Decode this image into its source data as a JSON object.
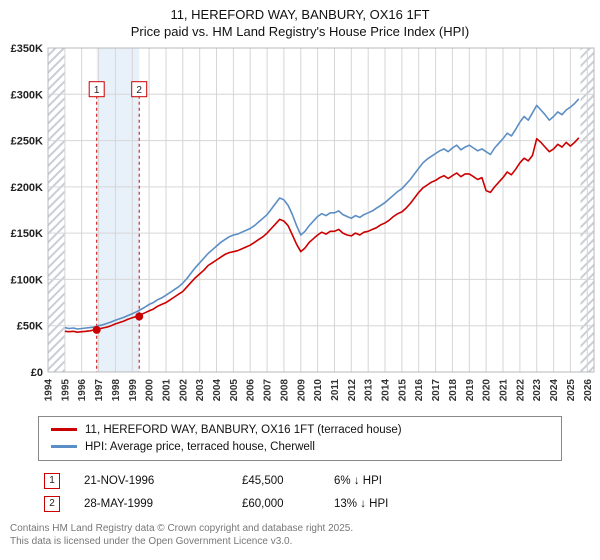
{
  "title": "11, HEREFORD WAY, BANBURY, OX16 1FT",
  "subtitle": "Price paid vs. HM Land Registry's House Price Index (HPI)",
  "legend": [
    {
      "label": "11, HEREFORD WAY, BANBURY, OX16 1FT (terraced house)",
      "color": "#cc0000"
    },
    {
      "label": "HPI: Average price, terraced house, Cherwell",
      "color": "#5b8ec4"
    }
  ],
  "transactions": [
    {
      "marker": "1",
      "date": "21-NOV-1996",
      "price": "£45,500",
      "hpi_diff": "6% ↓ HPI"
    },
    {
      "marker": "2",
      "date": "28-MAY-1999",
      "price": "£60,000",
      "hpi_diff": "13% ↓ HPI"
    }
  ],
  "footer": {
    "line1": "Contains HM Land Registry data © Crown copyright and database right 2025.",
    "line2": "This data is licensed under the Open Government Licence v3.0."
  },
  "chart_data": {
    "type": "line",
    "title": "11, HEREFORD WAY, BANBURY, OX16 1FT — Price paid vs. HPI",
    "y_unit": "GBP thousands",
    "x_start": 1995.0,
    "x_step": 0.25,
    "x_axis": {
      "min": 1994,
      "max": 2026.4,
      "ticks": [
        1994,
        1995,
        1996,
        1997,
        1998,
        1999,
        2000,
        2001,
        2002,
        2003,
        2004,
        2005,
        2006,
        2007,
        2008,
        2009,
        2010,
        2011,
        2012,
        2013,
        2014,
        2015,
        2016,
        2017,
        2018,
        2019,
        2020,
        2021,
        2022,
        2023,
        2024,
        2025,
        2026
      ]
    },
    "y_axis": {
      "min_k": 0,
      "max_k": 350,
      "tick_step_k": 50,
      "tick_labels": [
        "£0",
        "£50K",
        "£100K",
        "£150K",
        "£200K",
        "£250K",
        "£300K",
        "£350K"
      ]
    },
    "grid": true,
    "legend_position": "bottom",
    "series": [
      {
        "name": "HPI: Average price, terraced house, Cherwell",
        "color": "#5b8ec4",
        "values_k": [
          48,
          47,
          47.5,
          46.5,
          47,
          47.5,
          48,
          48.5,
          50,
          51,
          52.5,
          54,
          56,
          57.5,
          59,
          61,
          63,
          65,
          67.5,
          70,
          73,
          75,
          78,
          80,
          83,
          86,
          89,
          92,
          96,
          101,
          107,
          113,
          118,
          123,
          128,
          132,
          136,
          140,
          143,
          146,
          148,
          149,
          151,
          153,
          155,
          158,
          162,
          166,
          170,
          176,
          182,
          188,
          186,
          180,
          170,
          158,
          148,
          152,
          158,
          163,
          168,
          171,
          169,
          172,
          172,
          174,
          170,
          168,
          166,
          169,
          167,
          170,
          172,
          174,
          177,
          180,
          183,
          187,
          191,
          195,
          198,
          203,
          208,
          214,
          220,
          226,
          230,
          233,
          236,
          239,
          241,
          238,
          242,
          245,
          240,
          243,
          245,
          242,
          239,
          241,
          238,
          235,
          242,
          247,
          252,
          258,
          255,
          262,
          270,
          276,
          272,
          280,
          288,
          283,
          278,
          272,
          276,
          281,
          278,
          283,
          286,
          290,
          295
        ]
      },
      {
        "name": "11, HEREFORD WAY, BANBURY, OX16 1FT (terraced house)",
        "color": "#cc0000",
        "values_k": [
          44,
          43.5,
          44,
          43,
          43.5,
          44,
          44.5,
          45.5,
          46.5,
          47.5,
          48.5,
          50,
          52,
          53.5,
          55,
          57,
          58.5,
          60,
          62,
          64,
          66,
          68,
          71,
          73,
          75,
          78,
          81,
          84,
          87,
          92,
          97,
          102,
          106,
          110,
          115,
          118,
          121,
          124,
          127,
          129,
          130,
          131,
          133,
          135,
          137,
          140,
          143,
          146,
          150,
          155,
          160,
          165,
          163,
          158,
          148,
          138,
          130,
          134,
          140,
          144,
          148,
          151,
          149,
          152,
          152,
          154,
          150,
          148,
          147,
          150,
          148,
          151,
          152,
          154,
          156,
          159,
          161,
          164,
          168,
          171,
          173,
          177,
          182,
          188,
          194,
          199,
          202,
          205,
          207,
          210,
          212,
          209,
          212,
          215,
          211,
          214,
          214,
          211,
          208,
          210,
          196,
          194,
          200,
          205,
          210,
          216,
          213,
          219,
          226,
          231,
          228,
          234,
          252,
          248,
          243,
          238,
          241,
          246,
          243,
          248,
          244,
          248,
          253
        ]
      }
    ],
    "markers": [
      {
        "label": "1",
        "x": 1996.89,
        "y_k": 45.5,
        "date": "21-NOV-1996",
        "price_gbp": 45500
      },
      {
        "label": "2",
        "x": 1999.41,
        "y_k": 60,
        "date": "28-MAY-1999",
        "price_gbp": 60000
      }
    ],
    "shaded_band": {
      "from": 1996.89,
      "to": 1999.41,
      "color": "#e8f0fa"
    },
    "hatch_regions": [
      {
        "from": 1994,
        "to": 1995
      },
      {
        "from": 2025.6,
        "to": 2026.4
      }
    ]
  }
}
